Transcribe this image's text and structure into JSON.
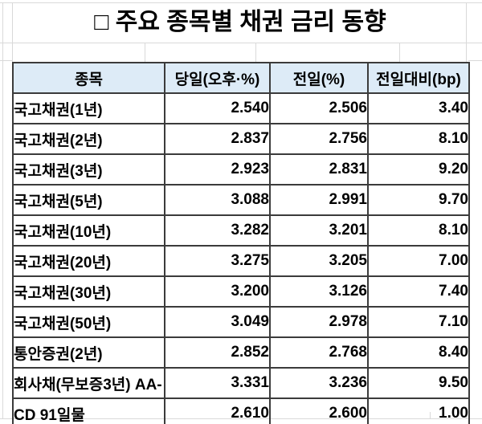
{
  "title": "□ 주요 종목별 채권 금리 동향",
  "chart_data": {
    "type": "table",
    "title": "□ 주요 종목별 채권 금리 동향",
    "columns": [
      "종목",
      "당일(오후·%)",
      "전일(%)",
      "전일대비(bp)"
    ],
    "columns_meaning": [
      "item",
      "today_afternoon_pct",
      "previous_day_pct",
      "change_bp"
    ],
    "rows": [
      [
        "국고채권(1년)",
        "2.540",
        "2.506",
        "3.40"
      ],
      [
        "국고채권(2년)",
        "2.837",
        "2.756",
        "8.10"
      ],
      [
        "국고채권(3년)",
        "2.923",
        "2.831",
        "9.20"
      ],
      [
        "국고채권(5년)",
        "3.088",
        "2.991",
        "9.70"
      ],
      [
        "국고채권(10년)",
        "3.282",
        "3.201",
        "8.10"
      ],
      [
        "국고채권(20년)",
        "3.275",
        "3.205",
        "7.00"
      ],
      [
        "국고채권(30년)",
        "3.200",
        "3.126",
        "7.40"
      ],
      [
        "국고채권(50년)",
        "3.049",
        "2.978",
        "7.10"
      ],
      [
        "통안증권(2년)",
        "2.852",
        "2.768",
        "8.40"
      ],
      [
        "회사채(무보증3년) AA-",
        "3.331",
        "3.236",
        "9.50"
      ],
      [
        "CD 91일물",
        "2.610",
        "2.600",
        "1.00"
      ]
    ],
    "legend": "none",
    "grid": "bordered-table"
  },
  "colors": {
    "header_bg": "#DDEBF7",
    "border": "#3b3b3b",
    "gridline": "#d9d9d9",
    "text": "#000000"
  }
}
